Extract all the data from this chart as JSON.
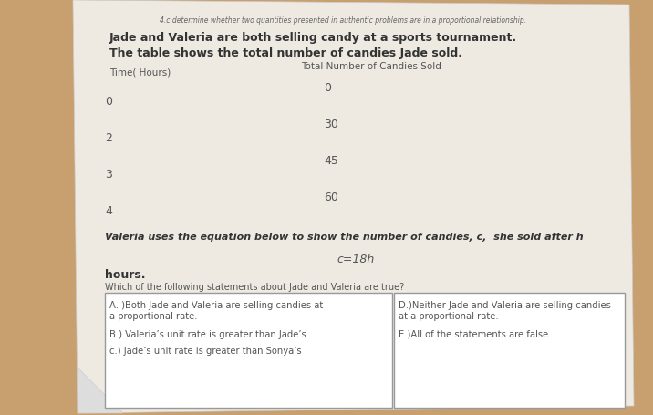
{
  "bg_color_top": "#c8a882",
  "bg_color": "#c4a070",
  "paper_color": "#eeeae2",
  "header_small": "4.c determine whether two quantities presented in authentic problems are in a proportional relationship.",
  "header_line1": "Jade and Valeria are both selling candy at a sports tournament.",
  "header_line2": "The table shows the total number of candies Jade sold.",
  "col1_header": "Time( Hours)",
  "col2_header": "Total Number of Candies Sold",
  "table_times": [
    "0",
    "2",
    "3",
    "4"
  ],
  "table_candies": [
    "0",
    "30",
    "45",
    "60"
  ],
  "equation_intro": "Valeria uses the equation below to show the number of candies, c,  she sold after h",
  "equation": "c=18h",
  "hours_label": "hours.",
  "question": "Which of the following statements about Jade and Valeria are true?",
  "box_A": "A. )Both Jade and Valeria are selling candies at\na proportional rate.",
  "box_B": "B.) Valeria’s unit rate is greater than Jade’s.",
  "box_C": "c.) Jade’s unit rate is greater than Sonya’s",
  "box_D": "D.)Neither Jade and Valeria are selling candies\nat a proportional rate.",
  "box_E": "E.)All of the statements are false.",
  "text_color": "#555555",
  "dark_text": "#333333",
  "box_border": "#999999"
}
